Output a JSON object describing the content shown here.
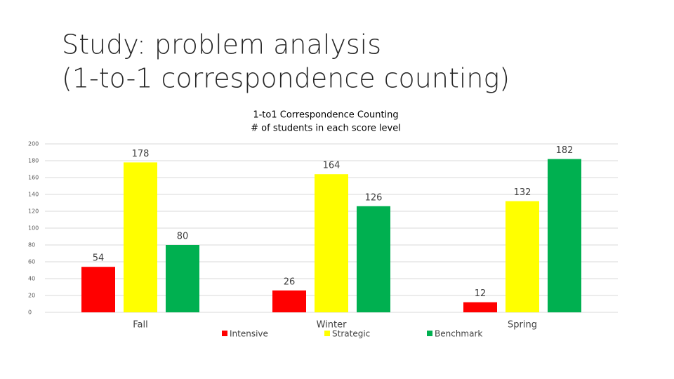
{
  "slide": {
    "title": [
      "Study: problem analysis",
      "(1-to-1 correspondence counting)"
    ]
  },
  "chart_data": {
    "type": "bar",
    "title": "1-to1 Correspondence Counting",
    "subtitle": "# of students in each score level",
    "categories": [
      "Fall",
      "Winter",
      "Spring"
    ],
    "series": [
      {
        "name": "Intensive",
        "color": "#ff0000",
        "values": [
          54,
          26,
          12
        ]
      },
      {
        "name": "Strategic",
        "color": "#ffff00",
        "values": [
          178,
          164,
          132
        ]
      },
      {
        "name": "Benchmark",
        "color": "#00b050",
        "values": [
          80,
          126,
          182
        ]
      }
    ],
    "ylim": [
      0,
      200
    ],
    "yticks": [
      0,
      20,
      40,
      60,
      80,
      100,
      120,
      140,
      160,
      180,
      200
    ],
    "grid": true,
    "legend": "bottom"
  }
}
